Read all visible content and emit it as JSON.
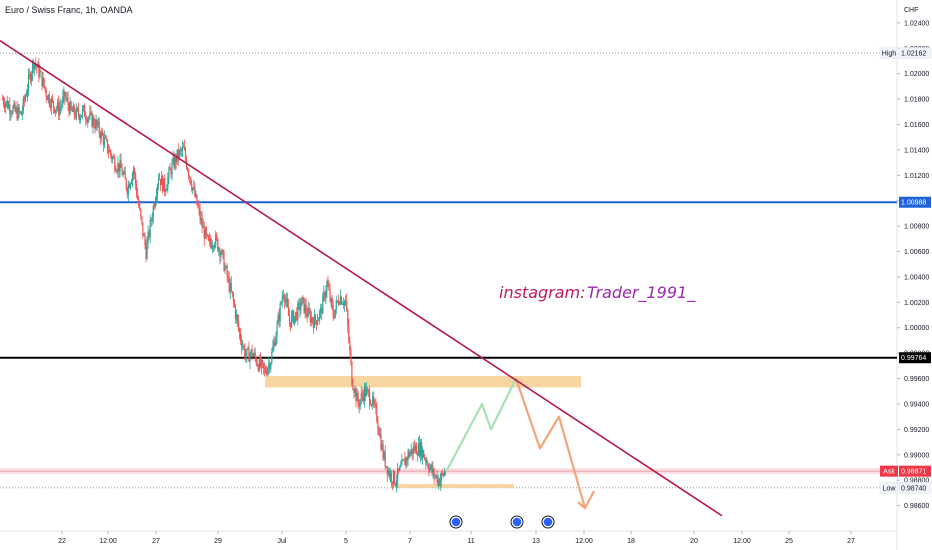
{
  "header": {
    "title": "Euro / Swiss Franc, 1h, OANDA",
    "currency": "CHF"
  },
  "colors": {
    "up": "#26a69a",
    "down": "#ef5350",
    "trendline": "#b5184f",
    "blue_level": "#1e64d8",
    "black_level": "#000000",
    "zone": "#f7c882",
    "projection_green": "#a8e0b8",
    "projection_orange": "#f5a47a",
    "watermark": "#b0196b",
    "event_marker": "#2962ff"
  },
  "annotations": {
    "instagram_label": "instagram:",
    "instagram_handle": "Trader_1991_"
  },
  "chart_data": {
    "type": "candlestick",
    "title": "Euro / Swiss Franc, 1h, OANDA",
    "ylabel": "CHF",
    "ylim": [
      0.984,
      1.0258
    ],
    "y_ticks": [
      "1.02400",
      "1.02200",
      "1.02000",
      "1.01800",
      "1.01600",
      "1.01400",
      "1.01200",
      "1.01000",
      "1.00800",
      "1.00600",
      "1.00400",
      "1.00200",
      "1.00000",
      "0.99800",
      "0.99600",
      "0.99400",
      "0.99200",
      "0.99000",
      "0.98800",
      "0.98600"
    ],
    "x_ticks": [
      "22",
      "12:00",
      "27",
      "29",
      "Jul",
      "5",
      "7",
      "11",
      "13",
      "12:00",
      "18",
      "20",
      "12:00",
      "25",
      "27"
    ],
    "price_labels": [
      {
        "label": "High",
        "value": "1.02162"
      },
      {
        "label": "",
        "value": "1.00988"
      },
      {
        "label": "",
        "value": "0.99764"
      },
      {
        "label": "Ask",
        "value": "0.98871"
      },
      {
        "label": "Low",
        "value": "0.98740"
      }
    ],
    "key_levels": [
      {
        "name": "High",
        "value": 1.02162
      },
      {
        "name": "blue-resistance",
        "value": 1.00988
      },
      {
        "name": "black-support",
        "value": 0.99764
      },
      {
        "name": "Ask",
        "value": 0.98871
      },
      {
        "name": "Low",
        "value": 0.9874
      }
    ],
    "trendline": {
      "from": {
        "x": "19",
        "y": 1.0226
      },
      "to": {
        "x": "22 Jul",
        "y": 0.9852
      }
    },
    "zones": [
      {
        "name": "resistance-zone",
        "y_from": 0.9953,
        "y_to": 0.9962
      },
      {
        "name": "support-zone",
        "y_from": 0.9874,
        "y_to": 0.9877
      }
    ],
    "projections": [
      {
        "name": "bullish-path",
        "points": [
          0.9888,
          0.994,
          0.992,
          0.996
        ]
      },
      {
        "name": "bearish-path",
        "points": [
          0.996,
          0.9905,
          0.993,
          0.9858
        ]
      }
    ],
    "event_markers": [
      "10 Jul",
      "12 Jul",
      "13 Jul"
    ],
    "candle_closes_by_day": [
      {
        "day": "20",
        "closes": [
          1.018,
          1.0175,
          1.017,
          1.0168
        ]
      },
      {
        "day": "21",
        "closes": [
          1.019,
          1.021,
          1.02,
          1.0185
        ]
      },
      {
        "day": "22",
        "closes": [
          1.0176,
          1.0172,
          1.0182,
          1.017
        ]
      },
      {
        "day": "23",
        "closes": [
          1.0168,
          1.017,
          1.0165,
          1.016
        ]
      },
      {
        "day": "24",
        "closes": [
          1.015,
          1.014,
          1.013,
          1.0125
        ]
      },
      {
        "day": "27",
        "closes": [
          1.011,
          1.0125,
          1.009,
          1.006
        ]
      },
      {
        "day": "28",
        "closes": [
          1.009,
          1.012,
          1.011,
          1.0125
        ]
      },
      {
        "day": "29",
        "closes": [
          1.0135,
          1.014,
          1.012,
          1.01
        ]
      },
      {
        "day": "30",
        "closes": [
          1.008,
          1.0065,
          1.007,
          1.006
        ]
      },
      {
        "day": "1",
        "closes": [
          1.004,
          1.002,
          0.9995,
          0.9978
        ]
      },
      {
        "day": "4",
        "closes": [
          0.998,
          0.9972,
          0.9965,
          0.9975
        ]
      },
      {
        "day": "5",
        "closes": [
          1.0,
          1.003,
          1.0005,
          1.001
        ]
      },
      {
        "day": "6",
        "closes": [
          1.002,
          1.001,
          1.0005,
          1.0012
        ]
      },
      {
        "day": "7",
        "closes": [
          1.0035,
          1.001,
          1.0025,
          1.002
        ]
      },
      {
        "day": "8",
        "closes": [
          0.996,
          0.994,
          0.995,
          0.9945
        ]
      },
      {
        "day": "11",
        "closes": [
          0.993,
          0.99,
          0.9885,
          0.988
        ]
      },
      {
        "day": "12",
        "closes": [
          0.989,
          0.99,
          0.9905,
          0.9905
        ]
      },
      {
        "day": "13",
        "closes": [
          0.9895,
          0.9885,
          0.988,
          0.9887
        ]
      }
    ]
  }
}
